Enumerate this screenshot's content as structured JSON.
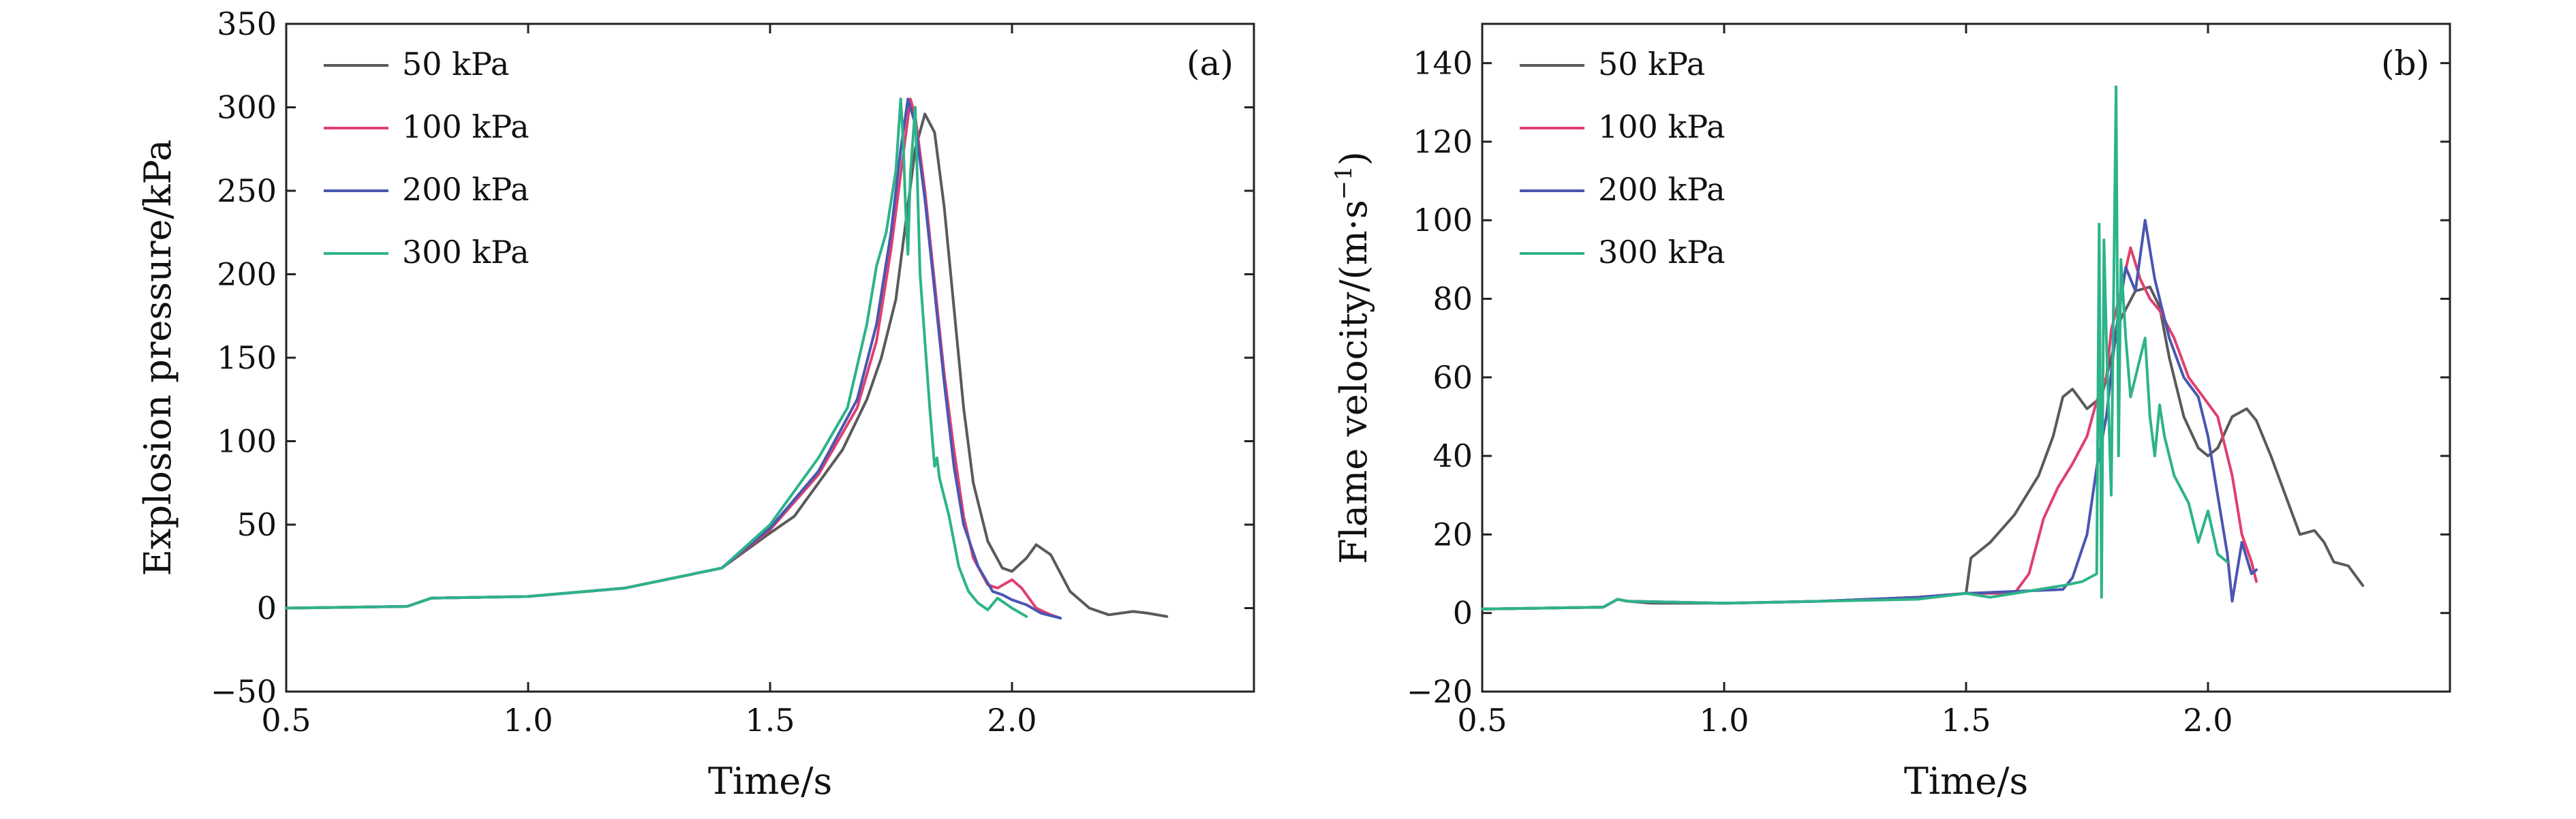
{
  "chart_data": [
    {
      "type": "line",
      "panel_label": "(a)",
      "xlabel": "Time/s",
      "ylabel": "Explosion pressure/kPa",
      "xlim": [
        0.5,
        2.5
      ],
      "ylim": [
        -50,
        350
      ],
      "xticks": [
        0.5,
        1.0,
        1.5,
        2.0
      ],
      "xtick_labels": [
        "0.5",
        "1.0",
        "1.5",
        "2.0"
      ],
      "yticks": [
        -50,
        0,
        50,
        100,
        150,
        200,
        250,
        300,
        350
      ],
      "ytick_labels": [
        "−50",
        "0",
        "50",
        "100",
        "150",
        "200",
        "250",
        "300",
        "350"
      ],
      "legend_position": "top-left",
      "series": [
        {
          "name": "50 kPa",
          "color": "#5a5a5a",
          "points": [
            [
              0.5,
              0
            ],
            [
              0.75,
              1
            ],
            [
              0.8,
              6
            ],
            [
              1.0,
              7
            ],
            [
              1.2,
              12
            ],
            [
              1.4,
              24
            ],
            [
              1.5,
              45
            ],
            [
              1.55,
              55
            ],
            [
              1.6,
              75
            ],
            [
              1.65,
              95
            ],
            [
              1.7,
              125
            ],
            [
              1.73,
              150
            ],
            [
              1.76,
              185
            ],
            [
              1.78,
              230
            ],
            [
              1.8,
              275
            ],
            [
              1.82,
              296
            ],
            [
              1.84,
              285
            ],
            [
              1.86,
              240
            ],
            [
              1.88,
              180
            ],
            [
              1.9,
              120
            ],
            [
              1.92,
              75
            ],
            [
              1.95,
              40
            ],
            [
              1.98,
              24
            ],
            [
              2.0,
              22
            ],
            [
              2.03,
              30
            ],
            [
              2.05,
              38
            ],
            [
              2.08,
              32
            ],
            [
              2.12,
              10
            ],
            [
              2.16,
              0
            ],
            [
              2.2,
              -4
            ],
            [
              2.25,
              -2
            ],
            [
              2.28,
              -3
            ],
            [
              2.32,
              -5
            ]
          ]
        },
        {
          "name": "100 kPa",
          "color": "#e0406e",
          "points": [
            [
              0.5,
              0
            ],
            [
              0.75,
              1
            ],
            [
              0.8,
              6
            ],
            [
              1.0,
              7
            ],
            [
              1.2,
              12
            ],
            [
              1.4,
              24
            ],
            [
              1.5,
              47
            ],
            [
              1.6,
              80
            ],
            [
              1.68,
              120
            ],
            [
              1.72,
              160
            ],
            [
              1.75,
              215
            ],
            [
              1.77,
              260
            ],
            [
              1.79,
              305
            ],
            [
              1.8,
              295
            ],
            [
              1.82,
              250
            ],
            [
              1.84,
              195
            ],
            [
              1.86,
              140
            ],
            [
              1.88,
              95
            ],
            [
              1.9,
              55
            ],
            [
              1.92,
              30
            ],
            [
              1.95,
              14
            ],
            [
              1.97,
              12
            ],
            [
              2.0,
              17
            ],
            [
              2.02,
              12
            ],
            [
              2.05,
              0
            ],
            [
              2.08,
              -4
            ],
            [
              2.1,
              -6
            ]
          ]
        },
        {
          "name": "200 kPa",
          "color": "#4a56b0",
          "points": [
            [
              0.5,
              0
            ],
            [
              0.75,
              1
            ],
            [
              0.8,
              6
            ],
            [
              1.0,
              7
            ],
            [
              1.2,
              12
            ],
            [
              1.4,
              24
            ],
            [
              1.5,
              48
            ],
            [
              1.6,
              82
            ],
            [
              1.68,
              125
            ],
            [
              1.72,
              170
            ],
            [
              1.75,
              225
            ],
            [
              1.77,
              275
            ],
            [
              1.785,
              305
            ],
            [
              1.8,
              290
            ],
            [
              1.82,
              245
            ],
            [
              1.84,
              190
            ],
            [
              1.86,
              135
            ],
            [
              1.88,
              85
            ],
            [
              1.9,
              50
            ],
            [
              1.93,
              25
            ],
            [
              1.96,
              10
            ],
            [
              1.98,
              8
            ],
            [
              2.0,
              5
            ],
            [
              2.03,
              2
            ],
            [
              2.06,
              -3
            ],
            [
              2.1,
              -6
            ]
          ]
        },
        {
          "name": "300 kPa",
          "color": "#2db38a",
          "points": [
            [
              0.5,
              0
            ],
            [
              0.75,
              1
            ],
            [
              0.8,
              6
            ],
            [
              1.0,
              7
            ],
            [
              1.2,
              12
            ],
            [
              1.4,
              24
            ],
            [
              1.5,
              50
            ],
            [
              1.6,
              90
            ],
            [
              1.66,
              120
            ],
            [
              1.7,
              170
            ],
            [
              1.72,
              205
            ],
            [
              1.74,
              225
            ],
            [
              1.76,
              262
            ],
            [
              1.77,
              305
            ],
            [
              1.775,
              280
            ],
            [
              1.78,
              240
            ],
            [
              1.785,
              212
            ],
            [
              1.79,
              260
            ],
            [
              1.8,
              300
            ],
            [
              1.81,
              200
            ],
            [
              1.82,
              160
            ],
            [
              1.83,
              120
            ],
            [
              1.84,
              85
            ],
            [
              1.845,
              90
            ],
            [
              1.85,
              78
            ],
            [
              1.87,
              55
            ],
            [
              1.89,
              25
            ],
            [
              1.91,
              10
            ],
            [
              1.93,
              3
            ],
            [
              1.95,
              -1
            ],
            [
              1.97,
              6
            ],
            [
              2.0,
              0
            ],
            [
              2.03,
              -5
            ]
          ]
        }
      ]
    },
    {
      "type": "line",
      "panel_label": "(b)",
      "xlabel": "Time/s",
      "ylabel": "Flame velocity/(m·s",
      "ylabel_sup": "−1",
      "ylabel_end": ")",
      "xlim": [
        0.5,
        2.5
      ],
      "ylim": [
        -20,
        150
      ],
      "xticks": [
        0.5,
        1.0,
        1.5,
        2.0
      ],
      "xtick_labels": [
        "0.5",
        "1.0",
        "1.5",
        "2.0"
      ],
      "yticks": [
        -20,
        0,
        20,
        40,
        60,
        80,
        100,
        120,
        140
      ],
      "ytick_labels": [
        "−20",
        "0",
        "20",
        "40",
        "60",
        "80",
        "100",
        "120",
        "140"
      ],
      "legend_position": "top-left",
      "series": [
        {
          "name": "50 kPa",
          "color": "#5a5a5a",
          "points": [
            [
              0.5,
              1
            ],
            [
              0.75,
              1.5
            ],
            [
              0.78,
              3.5
            ],
            [
              0.8,
              3
            ],
            [
              0.85,
              2.5
            ],
            [
              1.0,
              2.5
            ],
            [
              1.2,
              3
            ],
            [
              1.4,
              4
            ],
            [
              1.5,
              5
            ],
            [
              1.51,
              14
            ],
            [
              1.55,
              18
            ],
            [
              1.6,
              25
            ],
            [
              1.65,
              35
            ],
            [
              1.68,
              45
            ],
            [
              1.7,
              55
            ],
            [
              1.72,
              57
            ],
            [
              1.75,
              52
            ],
            [
              1.78,
              55
            ],
            [
              1.8,
              65
            ],
            [
              1.82,
              75
            ],
            [
              1.85,
              82
            ],
            [
              1.88,
              83
            ],
            [
              1.9,
              78
            ],
            [
              1.92,
              65
            ],
            [
              1.95,
              50
            ],
            [
              1.98,
              42
            ],
            [
              2.0,
              40
            ],
            [
              2.02,
              42
            ],
            [
              2.05,
              50
            ],
            [
              2.08,
              52
            ],
            [
              2.1,
              49
            ],
            [
              2.13,
              40
            ],
            [
              2.16,
              30
            ],
            [
              2.19,
              20
            ],
            [
              2.22,
              21
            ],
            [
              2.24,
              18
            ],
            [
              2.26,
              13
            ],
            [
              2.29,
              12
            ],
            [
              2.32,
              7
            ]
          ]
        },
        {
          "name": "100 kPa",
          "color": "#e0406e",
          "points": [
            [
              0.5,
              1
            ],
            [
              0.75,
              1.5
            ],
            [
              0.78,
              3.5
            ],
            [
              0.8,
              3
            ],
            [
              1.0,
              2.5
            ],
            [
              1.2,
              3
            ],
            [
              1.4,
              4
            ],
            [
              1.5,
              5
            ],
            [
              1.6,
              5
            ],
            [
              1.63,
              10
            ],
            [
              1.66,
              24
            ],
            [
              1.69,
              32
            ],
            [
              1.72,
              38
            ],
            [
              1.75,
              45
            ],
            [
              1.77,
              54
            ],
            [
              1.79,
              60
            ],
            [
              1.8,
              72
            ],
            [
              1.82,
              82
            ],
            [
              1.84,
              93
            ],
            [
              1.86,
              85
            ],
            [
              1.88,
              80
            ],
            [
              1.9,
              77
            ],
            [
              1.93,
              70
            ],
            [
              1.96,
              60
            ],
            [
              1.99,
              55
            ],
            [
              2.02,
              50
            ],
            [
              2.05,
              35
            ],
            [
              2.07,
              20
            ],
            [
              2.09,
              13
            ],
            [
              2.1,
              8
            ]
          ]
        },
        {
          "name": "200 kPa",
          "color": "#4a56b0",
          "points": [
            [
              0.5,
              1
            ],
            [
              0.75,
              1.5
            ],
            [
              0.78,
              3.5
            ],
            [
              0.8,
              3
            ],
            [
              1.0,
              2.5
            ],
            [
              1.2,
              3
            ],
            [
              1.4,
              4
            ],
            [
              1.5,
              5
            ],
            [
              1.7,
              6
            ],
            [
              1.72,
              9
            ],
            [
              1.75,
              20
            ],
            [
              1.77,
              37
            ],
            [
              1.79,
              50
            ],
            [
              1.81,
              72
            ],
            [
              1.83,
              88
            ],
            [
              1.85,
              82
            ],
            [
              1.87,
              100
            ],
            [
              1.89,
              85
            ],
            [
              1.92,
              70
            ],
            [
              1.95,
              60
            ],
            [
              1.98,
              55
            ],
            [
              2.0,
              45
            ],
            [
              2.02,
              30
            ],
            [
              2.04,
              15
            ],
            [
              2.05,
              3
            ],
            [
              2.07,
              18
            ],
            [
              2.09,
              10
            ],
            [
              2.1,
              11
            ]
          ]
        },
        {
          "name": "300 kPa",
          "color": "#2db38a",
          "points": [
            [
              0.5,
              1
            ],
            [
              0.75,
              1.5
            ],
            [
              0.78,
              3.5
            ],
            [
              0.8,
              3
            ],
            [
              1.0,
              2.5
            ],
            [
              1.2,
              3
            ],
            [
              1.4,
              3.5
            ],
            [
              1.5,
              5
            ],
            [
              1.55,
              4
            ],
            [
              1.6,
              5
            ],
            [
              1.65,
              6
            ],
            [
              1.7,
              7
            ],
            [
              1.74,
              8
            ],
            [
              1.77,
              10
            ],
            [
              1.775,
              99
            ],
            [
              1.78,
              4
            ],
            [
              1.785,
              95
            ],
            [
              1.79,
              70
            ],
            [
              1.8,
              30
            ],
            [
              1.81,
              134
            ],
            [
              1.815,
              40
            ],
            [
              1.82,
              90
            ],
            [
              1.83,
              70
            ],
            [
              1.84,
              55
            ],
            [
              1.85,
              60
            ],
            [
              1.86,
              65
            ],
            [
              1.87,
              70
            ],
            [
              1.88,
              50
            ],
            [
              1.89,
              40
            ],
            [
              1.9,
              53
            ],
            [
              1.91,
              45
            ],
            [
              1.93,
              35
            ],
            [
              1.96,
              28
            ],
            [
              1.98,
              18
            ],
            [
              2.0,
              26
            ],
            [
              2.02,
              15
            ],
            [
              2.04,
              13
            ]
          ]
        }
      ]
    }
  ]
}
